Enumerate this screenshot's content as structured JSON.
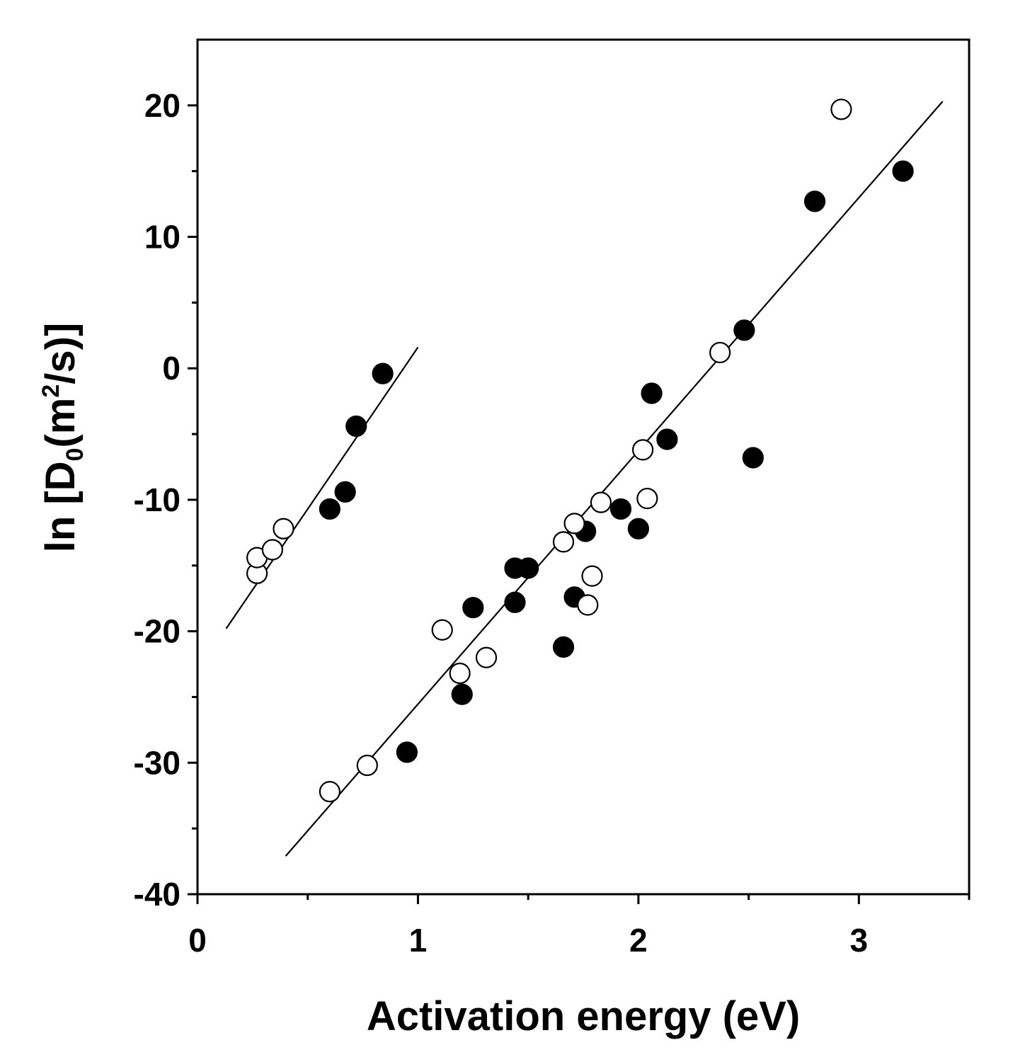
{
  "chart_data": {
    "type": "scatter",
    "title": "",
    "xlabel": "Activation energy (eV)",
    "ylabel": {
      "prefix": "ln [D",
      "sub": "0",
      "mid": "(m",
      "sup": "2",
      "suffix": "/s)]"
    },
    "xlim": [
      0,
      3.5
    ],
    "ylim": [
      -40,
      25
    ],
    "x_ticks_major": [
      0,
      1,
      2,
      3
    ],
    "x_tick_labels": [
      "0",
      "1",
      "2",
      "3"
    ],
    "x_ticks_minor": [
      0.5,
      1.5,
      2.5,
      3.5
    ],
    "y_ticks_major": [
      -40,
      -30,
      -20,
      -10,
      0,
      10,
      20
    ],
    "y_tick_labels": [
      "-40",
      "-30",
      "-20",
      "-10",
      "0",
      "10",
      "20"
    ],
    "y_ticks_minor": [
      -35,
      -25,
      -15,
      -5,
      5,
      15
    ],
    "grid": false,
    "series": [
      {
        "name": "filled",
        "marker": "filled-circle",
        "color": "#000000",
        "points": [
          [
            0.6,
            -10.7
          ],
          [
            0.67,
            -9.4
          ],
          [
            0.72,
            -4.4
          ],
          [
            0.84,
            -0.4
          ],
          [
            0.95,
            -29.2
          ],
          [
            1.2,
            -24.8
          ],
          [
            1.25,
            -18.2
          ],
          [
            1.44,
            -17.8
          ],
          [
            1.44,
            -15.2
          ],
          [
            1.5,
            -15.2
          ],
          [
            1.66,
            -21.2
          ],
          [
            1.71,
            -17.4
          ],
          [
            1.76,
            -12.4
          ],
          [
            1.92,
            -10.7
          ],
          [
            2.0,
            -12.2
          ],
          [
            2.06,
            -1.9
          ],
          [
            2.13,
            -5.4
          ],
          [
            2.48,
            2.9
          ],
          [
            2.52,
            -6.8
          ],
          [
            2.8,
            12.7
          ],
          [
            3.2,
            15.0
          ]
        ]
      },
      {
        "name": "open",
        "marker": "open-circle",
        "color": "#000000",
        "points": [
          [
            0.27,
            -15.6
          ],
          [
            0.27,
            -14.4
          ],
          [
            0.34,
            -13.8
          ],
          [
            0.39,
            -12.2
          ],
          [
            0.6,
            -32.2
          ],
          [
            0.77,
            -30.2
          ],
          [
            1.11,
            -19.9
          ],
          [
            1.19,
            -23.2
          ],
          [
            1.31,
            -22.0
          ],
          [
            1.66,
            -13.2
          ],
          [
            1.71,
            -11.8
          ],
          [
            1.77,
            -18.0
          ],
          [
            1.79,
            -15.8
          ],
          [
            1.83,
            -10.2
          ],
          [
            2.02,
            -6.2
          ],
          [
            2.04,
            -9.9
          ],
          [
            2.37,
            1.2
          ],
          [
            2.92,
            19.7
          ]
        ]
      }
    ],
    "fit_lines": [
      {
        "name": "fit-left",
        "x": [
          0.13,
          1.0
        ],
        "y": [
          -19.8,
          1.6
        ]
      },
      {
        "name": "fit-right",
        "x": [
          0.4,
          3.38
        ],
        "y": [
          -37.1,
          20.3
        ]
      }
    ]
  }
}
